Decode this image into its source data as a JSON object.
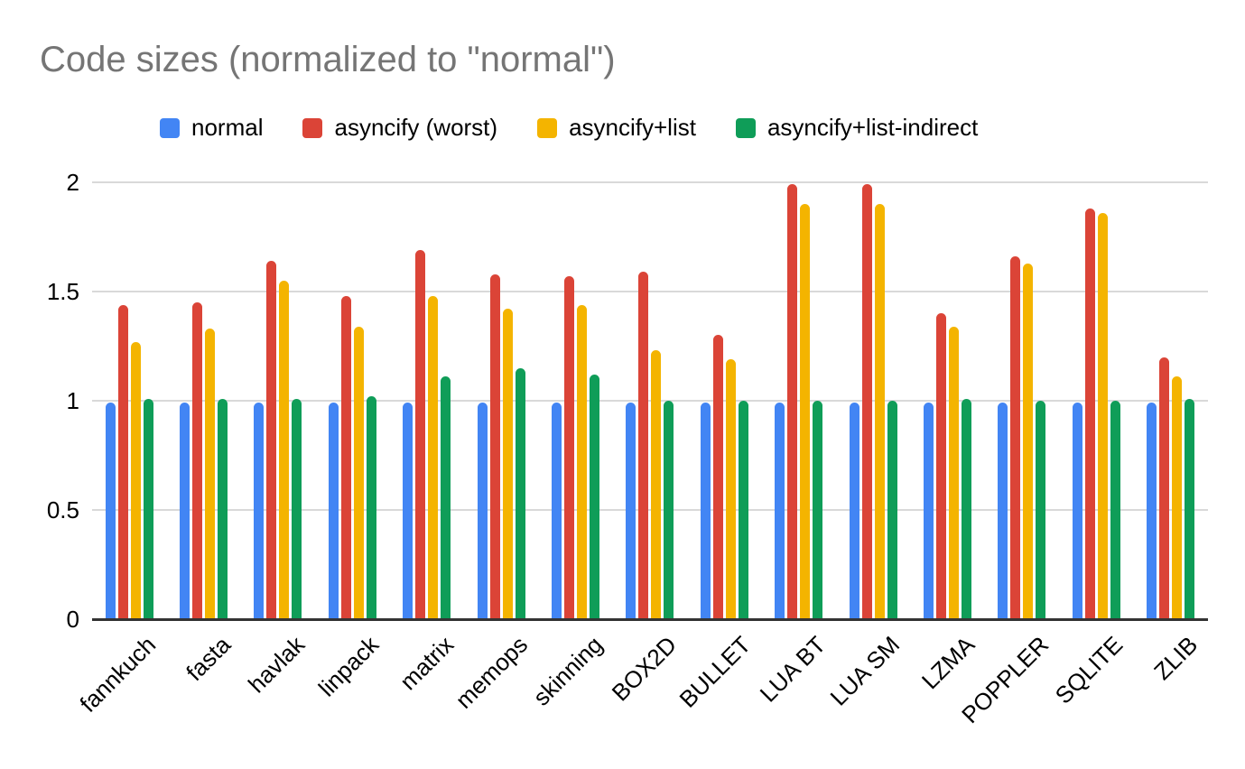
{
  "chart_data": {
    "type": "bar",
    "title": "Code sizes (normalized to \"normal\")",
    "xlabel": "",
    "ylabel": "",
    "ylim": [
      0,
      2
    ],
    "yticks": [
      {
        "value": 0,
        "label": "0"
      },
      {
        "value": 0.5,
        "label": "0.5"
      },
      {
        "value": 1,
        "label": "1"
      },
      {
        "value": 1.5,
        "label": "1.5"
      },
      {
        "value": 2,
        "label": "2"
      }
    ],
    "grid": true,
    "legend_position": "top",
    "categories": [
      "fannkuch",
      "fasta",
      "havlak",
      "linpack",
      "matrix",
      "memops",
      "skinning",
      "BOX2D",
      "BULLET",
      "LUA BT",
      "LUA SM",
      "LZMA",
      "POPPLER",
      "SQLITE",
      "ZLIB"
    ],
    "series": [
      {
        "name": "normal",
        "color": "#4285F4",
        "values": [
          0.99,
          0.99,
          0.99,
          0.99,
          0.99,
          0.99,
          0.99,
          0.99,
          0.99,
          0.99,
          0.99,
          0.99,
          0.99,
          0.99,
          0.99
        ]
      },
      {
        "name": "asyncify (worst)",
        "color": "#DB4437",
        "values": [
          1.44,
          1.45,
          1.64,
          1.48,
          1.69,
          1.58,
          1.57,
          1.59,
          1.3,
          1.99,
          1.99,
          1.4,
          1.66,
          1.88,
          1.2
        ]
      },
      {
        "name": "asyncify+list",
        "color": "#F4B400",
        "values": [
          1.27,
          1.33,
          1.55,
          1.34,
          1.48,
          1.42,
          1.44,
          1.23,
          1.19,
          1.9,
          1.9,
          1.34,
          1.63,
          1.86,
          1.11
        ]
      },
      {
        "name": "asyncify+list-indirect",
        "color": "#0F9D58",
        "values": [
          1.01,
          1.01,
          1.01,
          1.02,
          1.11,
          1.15,
          1.12,
          1.0,
          1.0,
          1.0,
          1.0,
          1.01,
          1.0,
          1.0,
          1.01
        ]
      }
    ],
    "styles": {
      "title_color": "#757575",
      "label_color": "#000000",
      "gridline_color": "#D9D9D9",
      "axis_color": "#333333",
      "background": "#FFFFFF"
    }
  }
}
